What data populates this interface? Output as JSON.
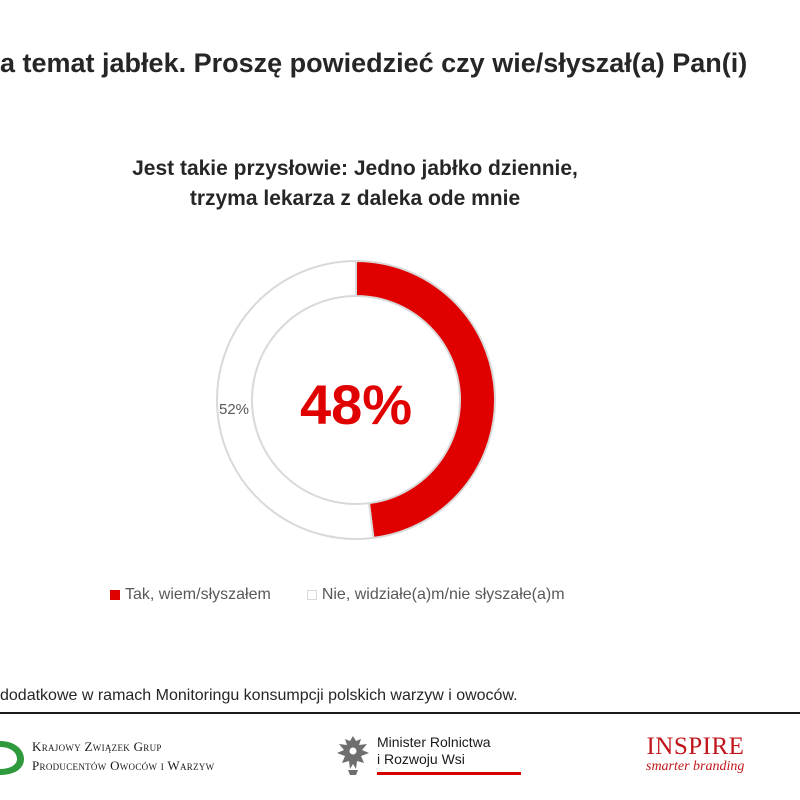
{
  "header": {
    "title": "a temat jabłek. Proszę powiedzieć czy wie/słyszał(a) Pan(i)"
  },
  "chart_data": {
    "type": "pie",
    "variant": "donut",
    "title_lines": [
      "Jest takie przysłowie: Jedno jabłko dziennie,",
      "trzyma lekarza z daleka ode mnie"
    ],
    "center_label": "48%",
    "slices": [
      {
        "name": "Tak, wiem/słyszałem",
        "value": 48,
        "color": "#e00000"
      },
      {
        "name": "Nie, widziałe(a)m/nie słyszałe(a)m",
        "value": 52,
        "color": "#ffffff",
        "label": "52%"
      }
    ],
    "legend_position": "bottom"
  },
  "footer": {
    "note": "dodatkowe w ramach Monitoringu konsumpcji polskich warzyw i owoców."
  },
  "logos": {
    "kzgp": {
      "line1": "Krajowy Związek Grup",
      "line2": "Producentów Owoców i Warzyw"
    },
    "ministry": {
      "line1": "Minister Rolnictwa",
      "line2": "i Rozwoju Wsi"
    },
    "inspire": {
      "word": "INSPIRE",
      "tagline": "smarter branding"
    }
  },
  "colors": {
    "accent": "#e00000",
    "ring_outline": "#d9d9d9",
    "brand_inspire": "#c0161b"
  }
}
